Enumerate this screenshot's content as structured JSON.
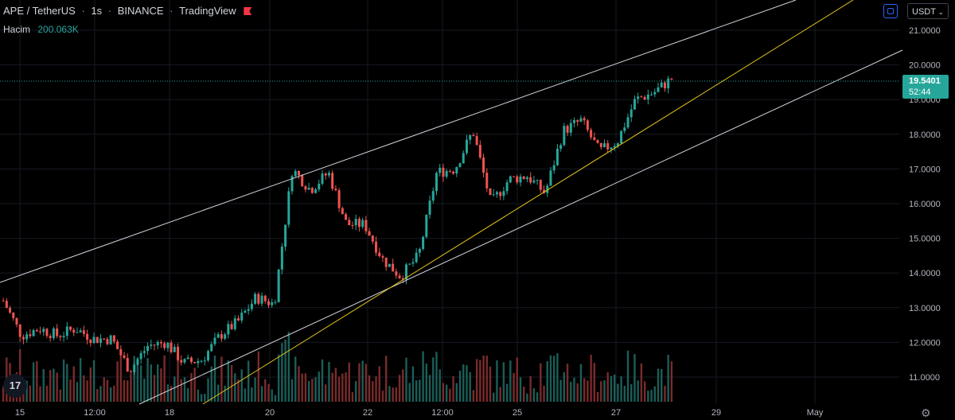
{
  "header": {
    "symbol": "APE / TetherUS",
    "interval": "1s",
    "exchange": "BINANCE",
    "source": "TradingView"
  },
  "volume_legend": {
    "label": "Hacim",
    "value": "200.063K"
  },
  "currency": {
    "label": "USDT"
  },
  "price_badge": {
    "price": "19.5401",
    "countdown": "52:44"
  },
  "price_axis": {
    "ticks": [
      "21.0000",
      "20.0000",
      "19.0000",
      "18.0000",
      "17.0000",
      "16.0000",
      "15.0000",
      "14.0000",
      "13.0000",
      "12.0000",
      "11.0000"
    ],
    "tick_values": [
      21,
      20,
      19,
      18,
      17,
      16,
      15,
      14,
      13,
      12,
      11
    ]
  },
  "time_axis": {
    "ticks": [
      "15",
      "12:00",
      "18",
      "20",
      "22",
      "12:00",
      "25",
      "27",
      "29",
      "May"
    ]
  },
  "colors": {
    "up": "#26a69a",
    "down": "#ef5350",
    "vol_up": "#1b5e58",
    "vol_down": "#7a2b2b",
    "channel": "#d1d4dc",
    "trendline": "#e6c619",
    "background": "#000000",
    "badge": "#26a69a"
  },
  "icons": {
    "logo": "tradingview-logo-icon",
    "settings": "gear-icon",
    "sync": "sync-icon",
    "flag": "flag-icon"
  },
  "chart_data": {
    "type": "candlestick",
    "ylim": [
      10.5,
      21.7
    ],
    "last_price": 19.5401,
    "price_path": [
      13.2,
      12.2,
      12.4,
      12.2,
      12.4,
      12.1,
      12.1,
      11.2,
      11.9,
      12.0,
      11.4,
      11.5,
      12.2,
      12.6,
      13.3,
      13.1,
      17.0,
      16.4,
      16.9,
      15.4,
      15.4,
      14.4,
      13.9,
      14.5,
      16.9,
      17.0,
      18.1,
      16.0,
      16.7,
      16.8,
      16.3,
      18.1,
      18.4,
      17.5,
      17.8,
      19.0,
      19.2,
      19.6
    ]
  }
}
